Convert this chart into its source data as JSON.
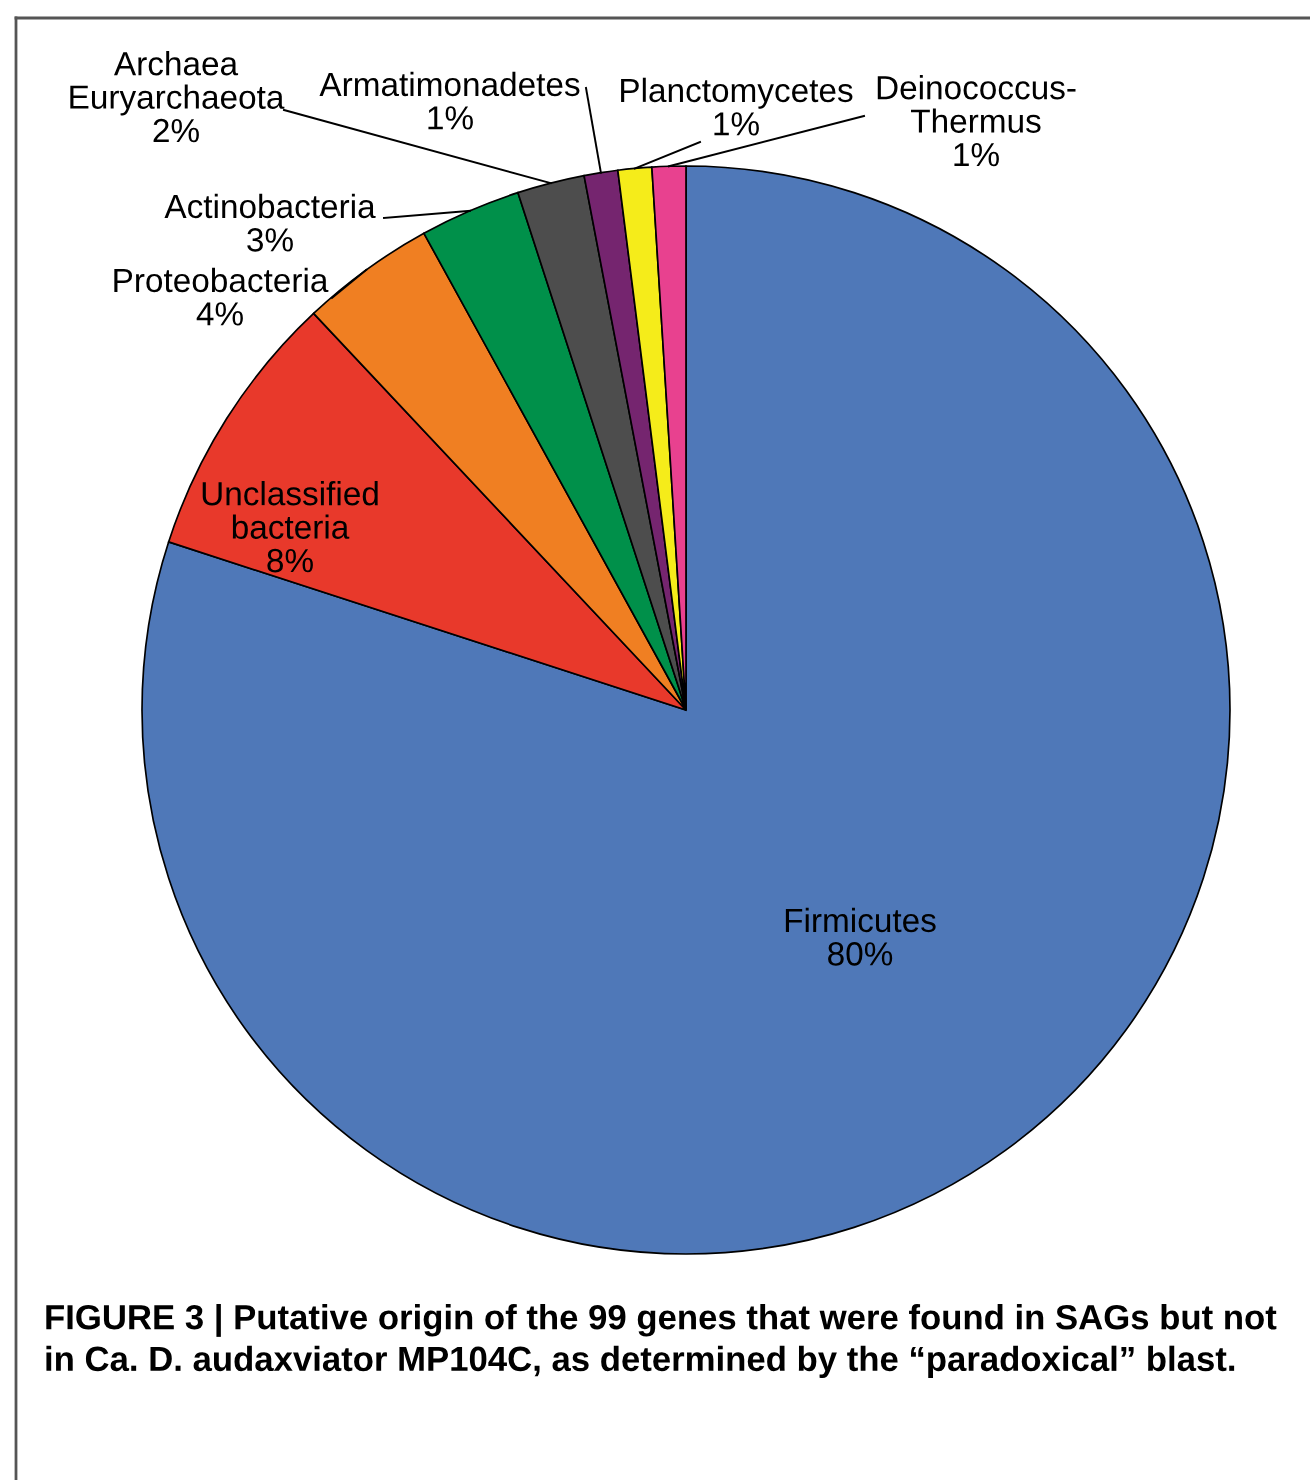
{
  "chart_data": {
    "type": "pie",
    "categories": [
      "Firmicutes",
      "Unclassified\nbacteria",
      "Proteobacteria",
      "Actinobacteria",
      "Archaea\nEuryarchaeota",
      "Armatimonadetes",
      "Planctomycetes",
      "Deinococcus-\nThermus"
    ],
    "values": [
      80,
      8,
      4,
      3,
      2,
      1,
      1,
      1
    ],
    "colors": [
      "#4f78b8",
      "#e8392b",
      "#f07f22",
      "#00904a",
      "#4d4d4d",
      "#75256f",
      "#f5ec1a",
      "#e8418f"
    ],
    "value_labels": [
      "80%",
      "8%",
      "4%",
      "3%",
      "2%",
      "1%",
      "1%",
      "1%"
    ],
    "annotations": [
      "FIGURE 3 | Putative origin of the 99 genes that were found in SAGs but not in Ca. D. audaxviator MP104C, as determined by the “paradoxical” blast."
    ]
  }
}
